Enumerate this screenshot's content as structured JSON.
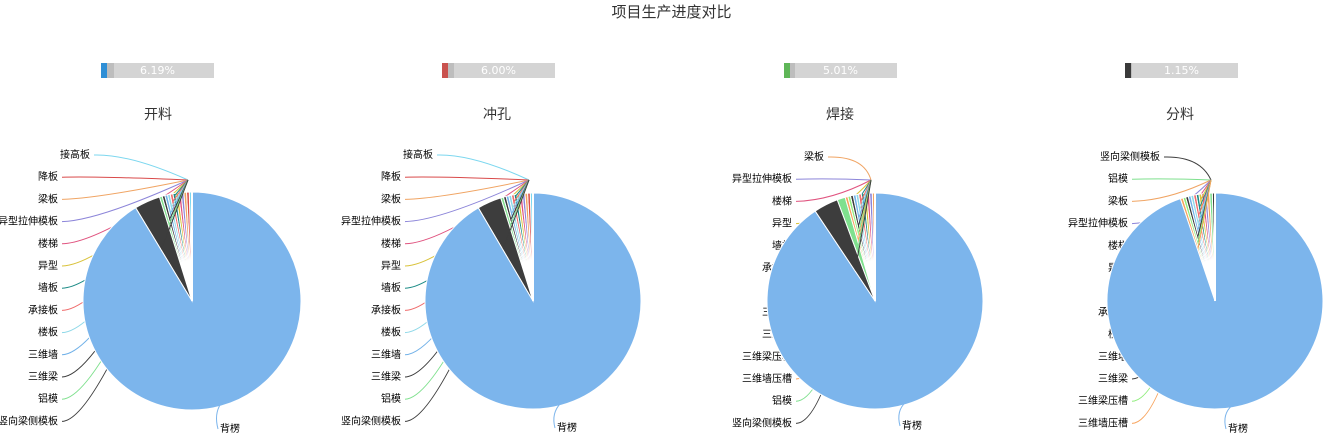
{
  "title": "项目生产进度对比",
  "chart_data": [
    {
      "type": "pie",
      "title": "开料",
      "progress": {
        "label": "6.19%",
        "value": 6.19,
        "color": "#2f8fd6"
      },
      "slices": [
        {
          "name": "接高板",
          "value": 0.4,
          "color": "#7cd7ef"
        },
        {
          "name": "降板",
          "value": 0.4,
          "color": "#d94a4a"
        },
        {
          "name": "梁板",
          "value": 0.4,
          "color": "#f0a463"
        },
        {
          "name": "异型拉伸模板",
          "value": 0.4,
          "color": "#8c85d9"
        },
        {
          "name": "楼梯",
          "value": 0.4,
          "color": "#e0537f"
        },
        {
          "name": "异型",
          "value": 0.4,
          "color": "#d9c23a"
        },
        {
          "name": "墙板",
          "value": 0.4,
          "color": "#1a8a85"
        },
        {
          "name": "承接板",
          "value": 0.4,
          "color": "#ef6b6b"
        },
        {
          "name": "楼板",
          "value": 0.4,
          "color": "#8ed8e8"
        },
        {
          "name": "三维墙",
          "value": 0.4,
          "color": "#71b1e8"
        },
        {
          "name": "三维梁",
          "value": 0.4,
          "color": "#3a3a3a"
        },
        {
          "name": "铝模",
          "value": 0.4,
          "color": "#7fe08e"
        },
        {
          "name": "竖向梁侧模板",
          "value": 3.8,
          "color": "#3d3d3d"
        },
        {
          "name": "背楞",
          "value": 90.8,
          "color": "#7cb5ec"
        }
      ]
    },
    {
      "type": "pie",
      "title": "冲孔",
      "progress": {
        "label": "6.00%",
        "value": 6.0,
        "color": "#c9524e"
      },
      "slices": [
        {
          "name": "接高板",
          "value": 0.4,
          "color": "#7cd7ef"
        },
        {
          "name": "降板",
          "value": 0.4,
          "color": "#d94a4a"
        },
        {
          "name": "梁板",
          "value": 0.4,
          "color": "#f0a463"
        },
        {
          "name": "异型拉伸模板",
          "value": 0.4,
          "color": "#8c85d9"
        },
        {
          "name": "楼梯",
          "value": 0.4,
          "color": "#e0537f"
        },
        {
          "name": "异型",
          "value": 0.4,
          "color": "#d9c23a"
        },
        {
          "name": "墙板",
          "value": 0.4,
          "color": "#1a8a85"
        },
        {
          "name": "承接板",
          "value": 0.4,
          "color": "#ef6b6b"
        },
        {
          "name": "楼板",
          "value": 0.4,
          "color": "#8ed8e8"
        },
        {
          "name": "三维墙",
          "value": 0.4,
          "color": "#71b1e8"
        },
        {
          "name": "三维梁",
          "value": 0.4,
          "color": "#3a3a3a"
        },
        {
          "name": "铝模",
          "value": 0.4,
          "color": "#7fe08e"
        },
        {
          "name": "竖向梁侧模板",
          "value": 3.6,
          "color": "#3d3d3d"
        },
        {
          "name": "背楞",
          "value": 91.0,
          "color": "#7cb5ec"
        }
      ]
    },
    {
      "type": "pie",
      "title": "焊接",
      "progress": {
        "label": "5.01%",
        "value": 5.01,
        "color": "#5fb658"
      },
      "slices": [
        {
          "name": "梁板",
          "value": 0.4,
          "color": "#f0a463"
        },
        {
          "name": "异型拉伸模板",
          "value": 0.4,
          "color": "#8c85d9"
        },
        {
          "name": "楼梯",
          "value": 0.4,
          "color": "#e0537f"
        },
        {
          "name": "异型",
          "value": 0.4,
          "color": "#d9c23a"
        },
        {
          "name": "墙板",
          "value": 0.4,
          "color": "#1a8a85"
        },
        {
          "name": "承接板",
          "value": 0.4,
          "color": "#ef6b6b"
        },
        {
          "name": "楼板",
          "value": 0.4,
          "color": "#8ed8e8"
        },
        {
          "name": "三维墙",
          "value": 0.4,
          "color": "#71b1e8"
        },
        {
          "name": "三维梁",
          "value": 0.4,
          "color": "#3a3a3a"
        },
        {
          "name": "三维梁压槽",
          "value": 0.4,
          "color": "#90ed7d"
        },
        {
          "name": "三维墙压槽",
          "value": 0.4,
          "color": "#f7a35c"
        },
        {
          "name": "铝模",
          "value": 1.2,
          "color": "#7fe08e"
        },
        {
          "name": "竖向梁侧模板",
          "value": 3.6,
          "color": "#3d3d3d"
        },
        {
          "name": "背楞",
          "value": 89.2,
          "color": "#7cb5ec"
        }
      ]
    },
    {
      "type": "pie",
      "title": "分料",
      "progress": {
        "label": "1.15%",
        "value": 1.15,
        "color": "#3a3a3a"
      },
      "slices": [
        {
          "name": "竖向梁侧模板",
          "value": 0.4,
          "color": "#3d3d3d"
        },
        {
          "name": "铝模",
          "value": 0.4,
          "color": "#7fe08e"
        },
        {
          "name": "梁板",
          "value": 0.4,
          "color": "#f0a463"
        },
        {
          "name": "异型拉伸模板",
          "value": 0.4,
          "color": "#8c85d9"
        },
        {
          "name": "楼梯",
          "value": 0.4,
          "color": "#e0537f"
        },
        {
          "name": "异型",
          "value": 0.4,
          "color": "#d9c23a"
        },
        {
          "name": "墙板",
          "value": 0.4,
          "color": "#1a8a85"
        },
        {
          "name": "承接板",
          "value": 0.4,
          "color": "#ef6b6b"
        },
        {
          "name": "楼板",
          "value": 0.4,
          "color": "#8ed8e8"
        },
        {
          "name": "三维墙",
          "value": 0.4,
          "color": "#71b1e8"
        },
        {
          "name": "三维梁",
          "value": 0.4,
          "color": "#3a3a3a"
        },
        {
          "name": "三维梁压槽",
          "value": 0.4,
          "color": "#90ed7d"
        },
        {
          "name": "三维墙压槽",
          "value": 0.4,
          "color": "#f7a35c"
        },
        {
          "name": "背楞",
          "value": 94.8,
          "color": "#7cb5ec"
        }
      ]
    }
  ]
}
